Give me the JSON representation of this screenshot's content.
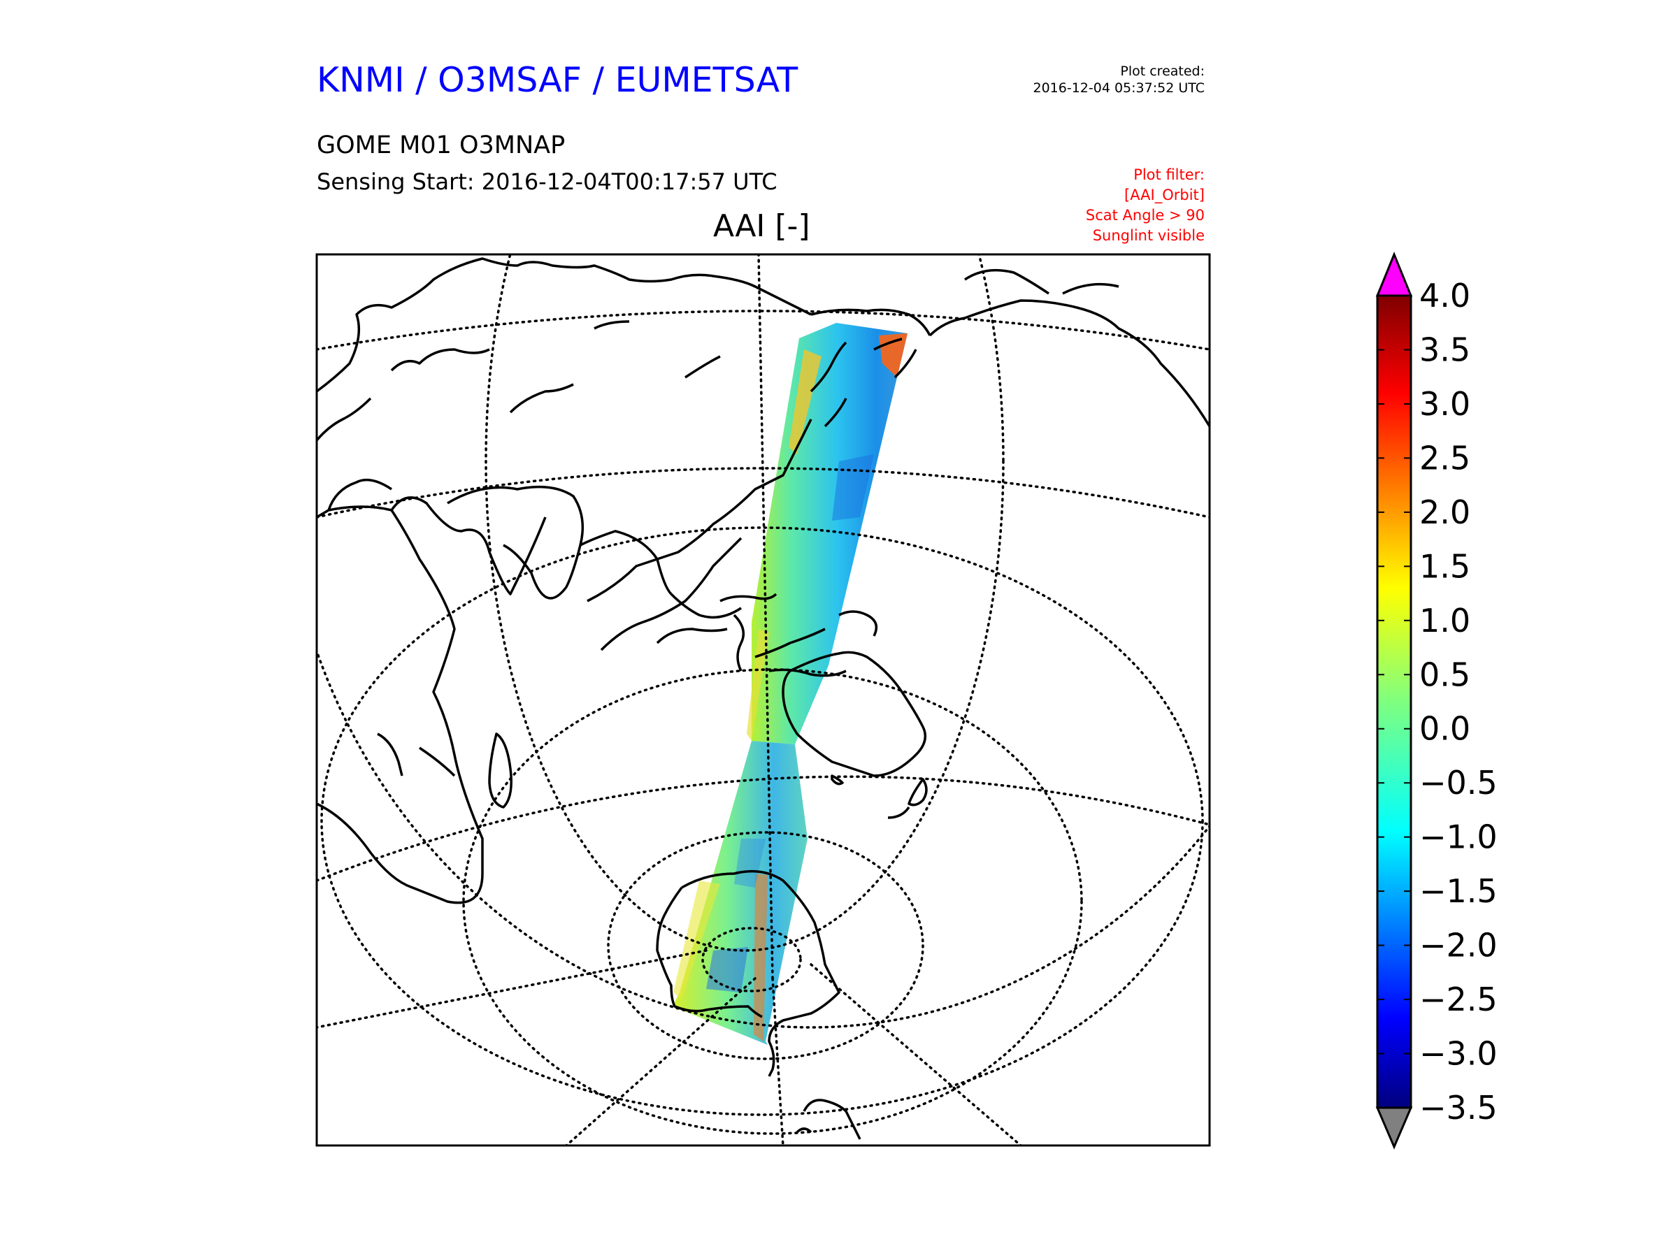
{
  "header": {
    "organisations": "KNMI / O3MSAF / EUMETSAT",
    "plot_created_label": "Plot created:",
    "plot_created_time": "2016-12-04 05:37:52 UTC",
    "product": "GOME M01 O3MNAP",
    "sensing_start": "Sensing Start: 2016-12-04T00:17:57 UTC",
    "plot_filter_lines": [
      "Plot filter:",
      "[AAI_Orbit]",
      "Scat Angle > 90",
      "Sunglint visible"
    ]
  },
  "map": {
    "title": "AAI [-]",
    "projection": "azimuthal (Earth-centered disc view, South Pole visible at lower centre)",
    "graticule": "dotted",
    "swath_region": "East Asia – Western Pacific – Australia – Antarctica"
  },
  "colorbar": {
    "min": -3.5,
    "max": 4.0,
    "tick_labels": [
      "4.0",
      "3.5",
      "3.0",
      "2.5",
      "2.0",
      "1.5",
      "1.0",
      "0.5",
      "0.0",
      "−0.5",
      "−1.0",
      "−1.5",
      "−2.0",
      "−2.5",
      "−3.0",
      "−3.5"
    ],
    "over_color": "#ff00ff",
    "under_color": "#808080",
    "colormap": "jet",
    "colors": [
      "#00007f",
      "#0000ff",
      "#007fff",
      "#00ffff",
      "#7fff7f",
      "#ffff00",
      "#ff7f00",
      "#ff0000",
      "#7f0000"
    ]
  }
}
